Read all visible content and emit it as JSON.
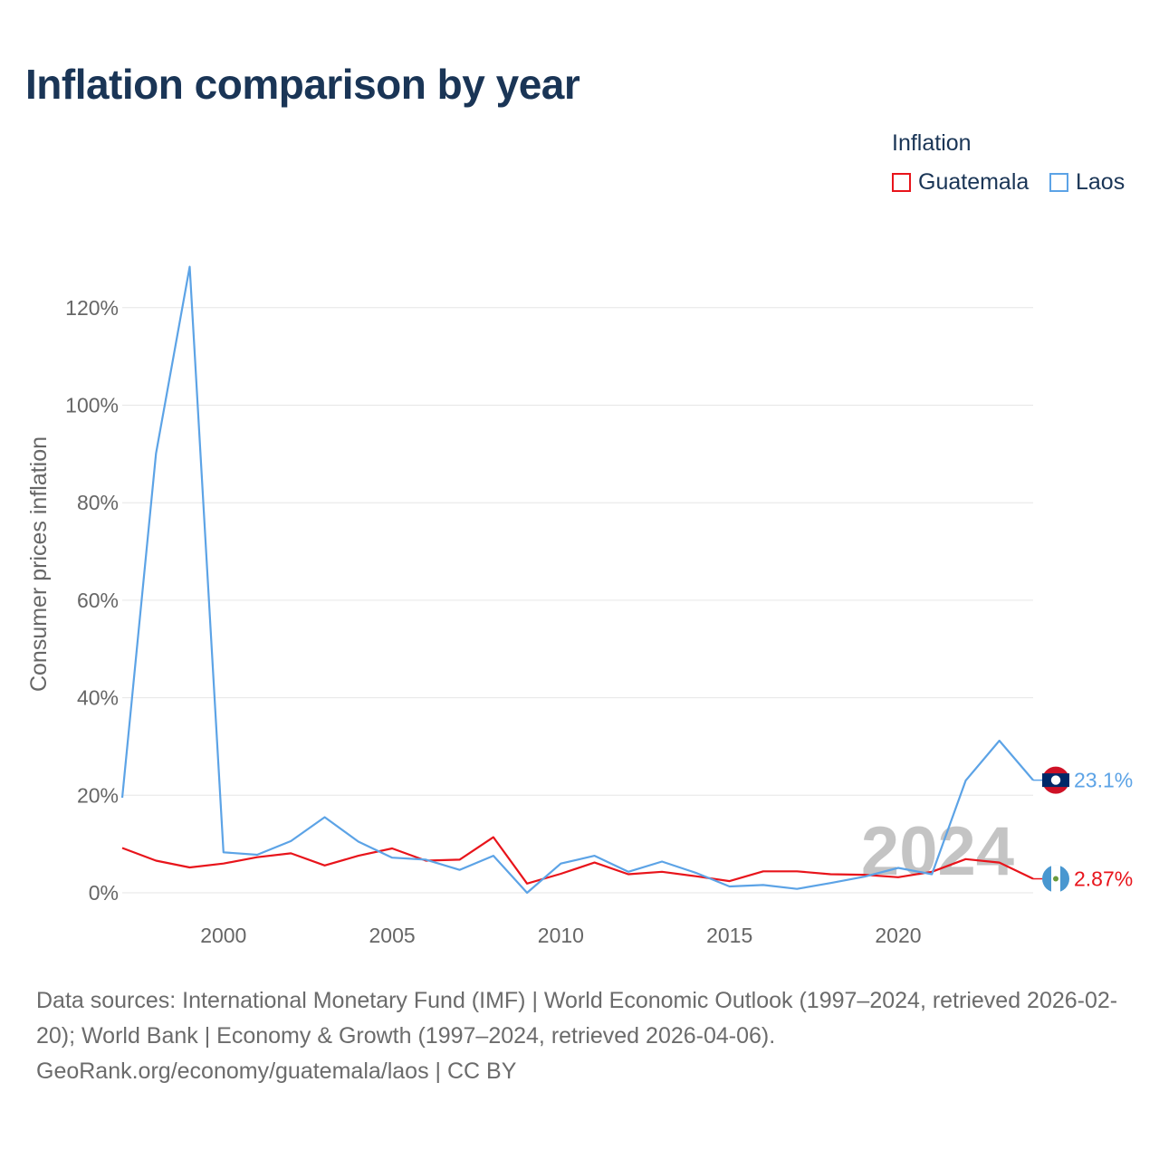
{
  "chart_data": {
    "type": "line",
    "title": "Inflation comparison by year",
    "legend_title": "Inflation",
    "ylabel": "Consumer prices inflation",
    "xlabel": "",
    "xlim": [
      1997,
      2024
    ],
    "ylim": [
      -5,
      130
    ],
    "x_ticks": [
      2000,
      2005,
      2010,
      2015,
      2020
    ],
    "y_ticks": [
      0,
      20,
      40,
      60,
      80,
      100,
      120
    ],
    "y_tick_labels": [
      "0%",
      "20%",
      "40%",
      "60%",
      "80%",
      "100%",
      "120%"
    ],
    "x": [
      1997,
      1998,
      1999,
      2000,
      2001,
      2002,
      2003,
      2004,
      2005,
      2006,
      2007,
      2008,
      2009,
      2010,
      2011,
      2012,
      2013,
      2014,
      2015,
      2016,
      2017,
      2018,
      2019,
      2020,
      2021,
      2022,
      2023,
      2024
    ],
    "series": [
      {
        "name": "Guatemala",
        "color": "#e8141b",
        "values": [
          9.2,
          6.6,
          5.2,
          6.0,
          7.3,
          8.1,
          5.6,
          7.6,
          9.1,
          6.6,
          6.8,
          11.4,
          1.9,
          3.9,
          6.2,
          3.8,
          4.3,
          3.4,
          2.4,
          4.4,
          4.4,
          3.8,
          3.7,
          3.2,
          4.3,
          6.9,
          6.2,
          2.87
        ],
        "end_label": "2.87%",
        "flag": "guatemala-flag"
      },
      {
        "name": "Laos",
        "color": "#5ca3e6",
        "values": [
          19.5,
          90.1,
          128.4,
          8.3,
          7.8,
          10.6,
          15.5,
          10.5,
          7.2,
          6.8,
          4.7,
          7.6,
          0.0,
          6.0,
          7.6,
          4.3,
          6.4,
          4.1,
          1.3,
          1.6,
          0.8,
          2.0,
          3.3,
          5.1,
          3.8,
          23.0,
          31.2,
          23.1
        ],
        "end_label": "23.1%",
        "flag": "laos-flag"
      }
    ],
    "current_year_label": "2024",
    "grid": true,
    "legend_position": "top-right"
  },
  "source": "Data sources: International Monetary Fund (IMF) | World Economic Outlook (1997–2024, retrieved 2026-02-20); World Bank | Economy & Growth (1997–2024, retrieved 2026-04-06). GeoRank.org/economy/guatemala/laos | CC BY"
}
